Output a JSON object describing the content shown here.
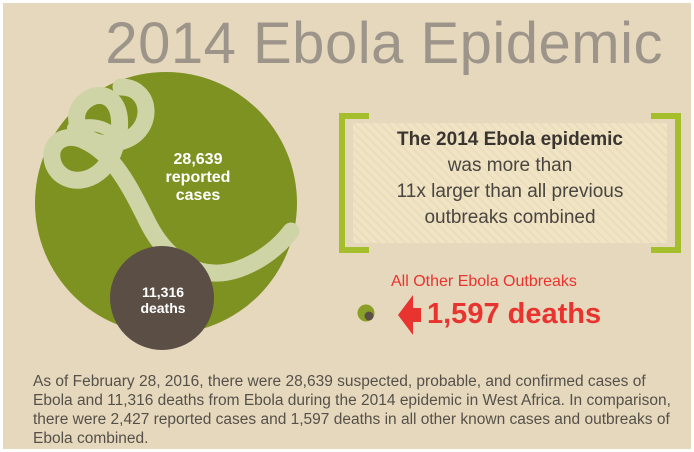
{
  "header": {
    "title": "2014 Ebola Epidemic"
  },
  "epidemic": {
    "cases_value": "28,639",
    "cases_label_1": "reported",
    "cases_label_2": "cases",
    "deaths_value": "11,316",
    "deaths_label": "deaths"
  },
  "callout": {
    "line1": "The 2014 Ebola epidemic",
    "line2": "was more than",
    "line3": "11x larger than all previous",
    "line4": "outbreaks combined"
  },
  "other_outbreaks": {
    "label": "All Other Ebola Outbreaks",
    "deaths": "1,597 deaths"
  },
  "footer": {
    "text": "As of February 28, 2016, there were 28,639 suspected, probable, and confirmed cases of Ebola and 11,316 deaths from Ebola during the 2014 epidemic in West Africa. In comparison, there were 2,427 reported cases and 1,597 deaths in all other known cases and outbreaks of Ebola combined."
  },
  "colors": {
    "background": "#e6d8bd",
    "cases_circle": "#7e9222",
    "deaths_circle": "#5b4e45",
    "accent_red": "#e8332f",
    "bracket_green": "#a4be2c",
    "title_gray": "#9d958a"
  }
}
